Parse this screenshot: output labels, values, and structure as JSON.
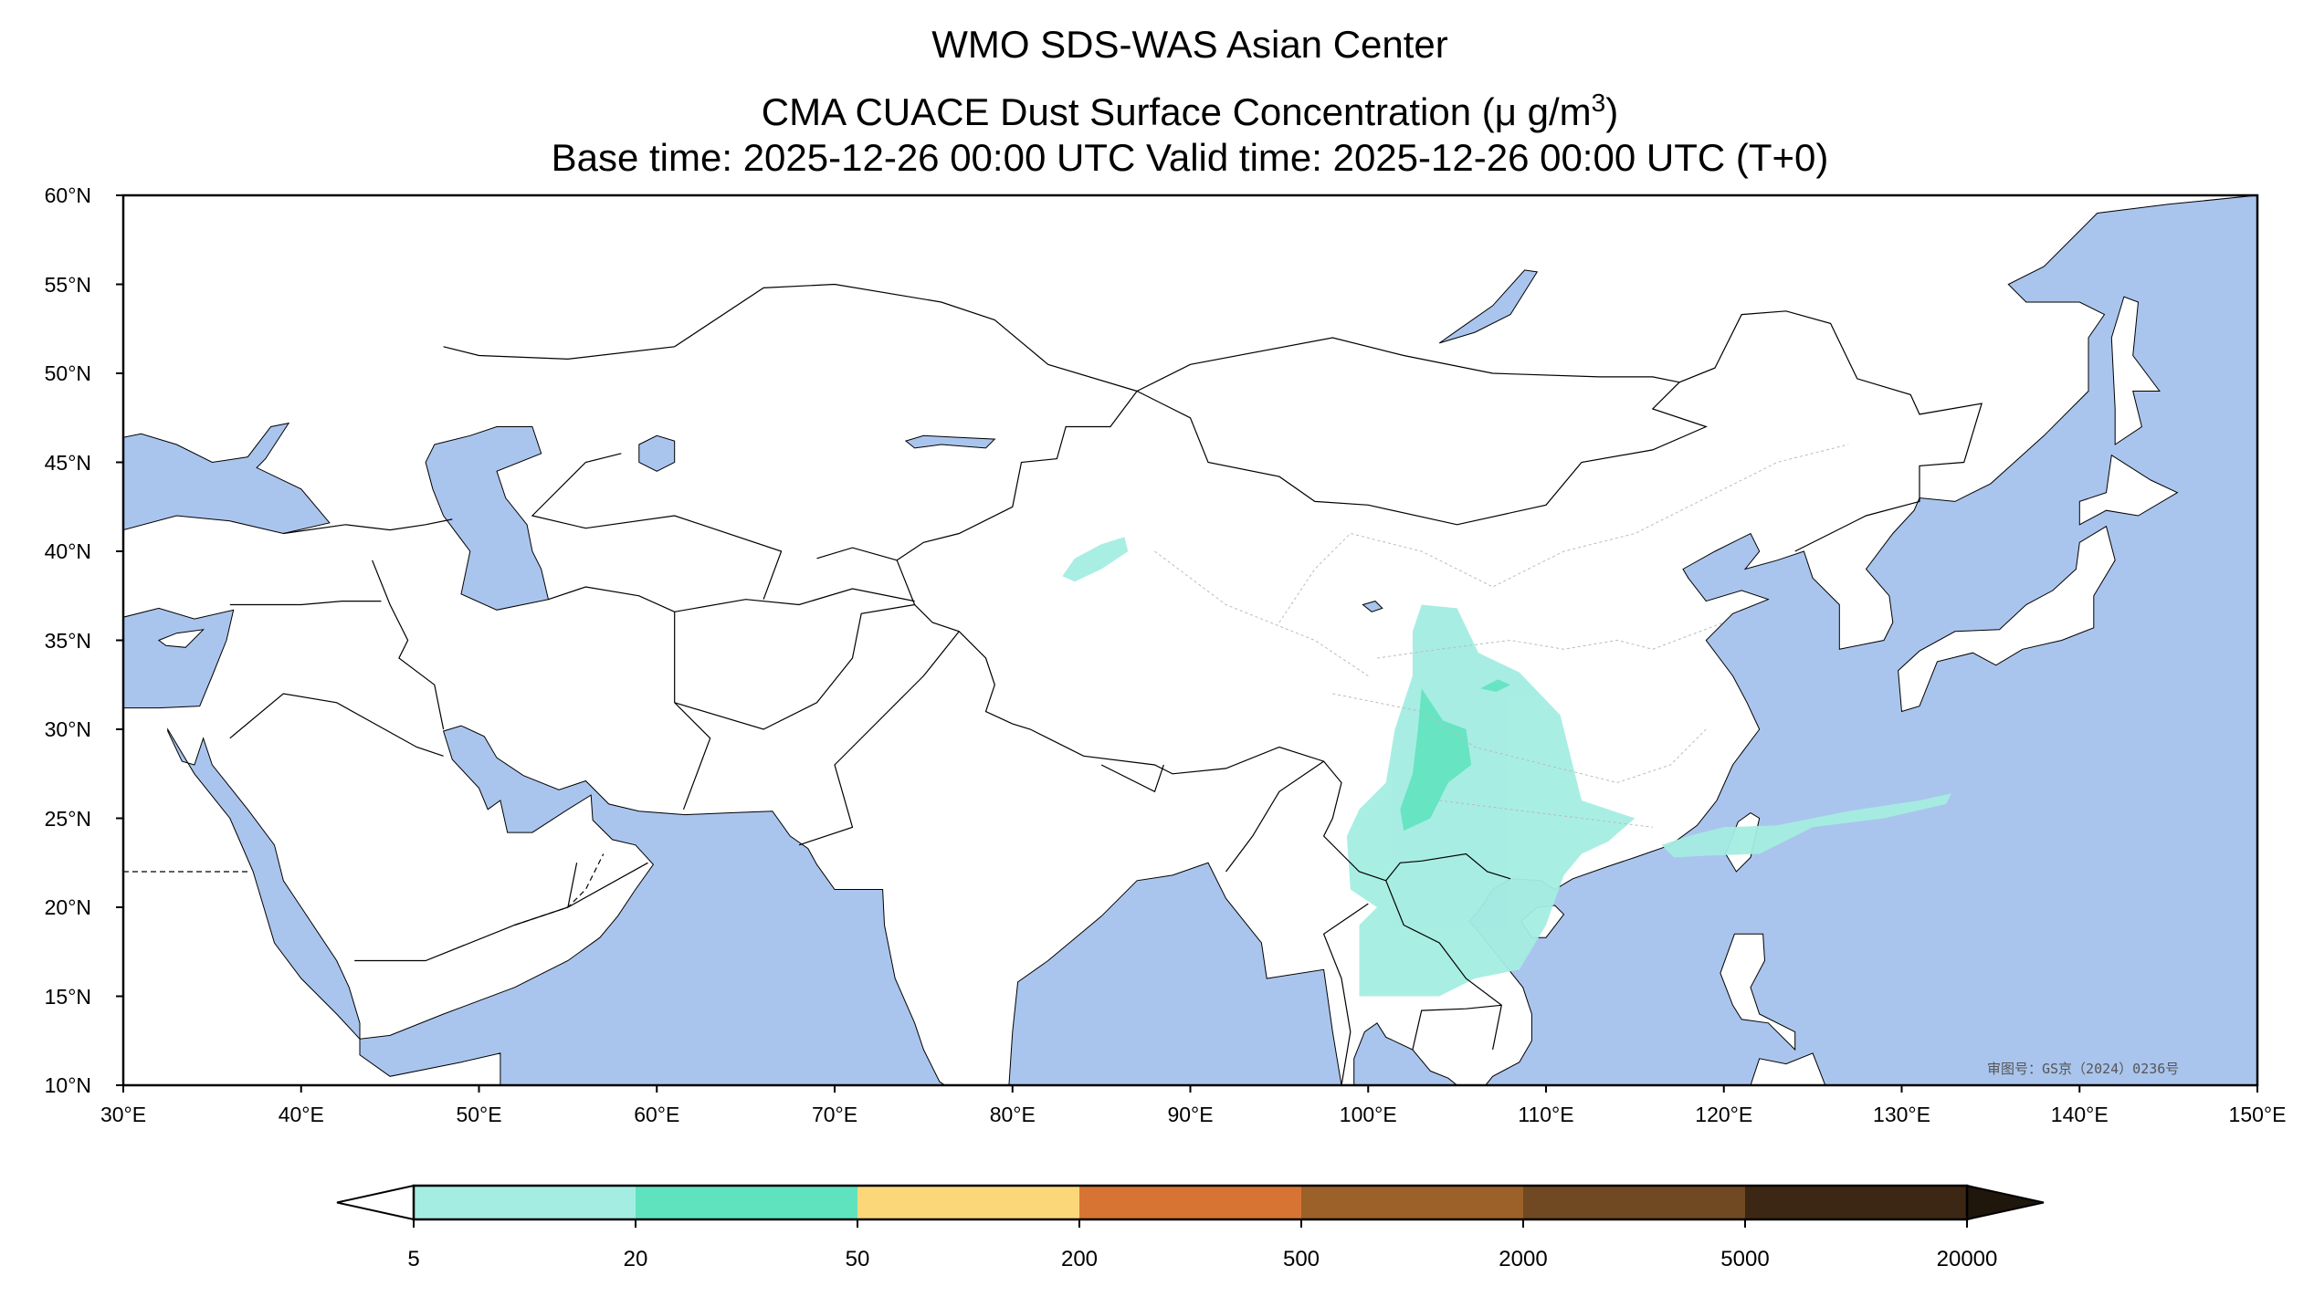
{
  "title": {
    "line1": "WMO SDS-WAS Asian Center",
    "line2_prefix": "CMA CUACE Dust Surface Concentration (",
    "line2_unit": "μ g/m",
    "line2_sup": "3",
    "line2_suffix": ")",
    "line3": "Base time: 2025-12-26 00:00 UTC Valid time: 2025-12-26 00:00 UTC (T+0)"
  },
  "axes": {
    "lat_ticks": [
      "10°N",
      "15°N",
      "20°N",
      "25°N",
      "30°N",
      "35°N",
      "40°N",
      "45°N",
      "50°N",
      "55°N",
      "60°N"
    ],
    "lon_ticks": [
      "30°E",
      "40°E",
      "50°E",
      "60°E",
      "70°E",
      "80°E",
      "90°E",
      "100°E",
      "110°E",
      "120°E",
      "130°E",
      "140°E",
      "150°E"
    ]
  },
  "watermark": "审图号：GS京（2024）0236号",
  "colors": {
    "ocean": "#aac5ed",
    "land": "#ffffff",
    "border": "#000000"
  },
  "colorbar": {
    "levels": [
      "5",
      "20",
      "50",
      "200",
      "500",
      "2000",
      "5000",
      "20000"
    ],
    "colors": [
      "#a4ede2",
      "#5fe3bf",
      "#fbd77a",
      "#d87433",
      "#9c6128",
      "#704822",
      "#3c2714",
      "#1f160c"
    ],
    "extend": "both"
  }
}
